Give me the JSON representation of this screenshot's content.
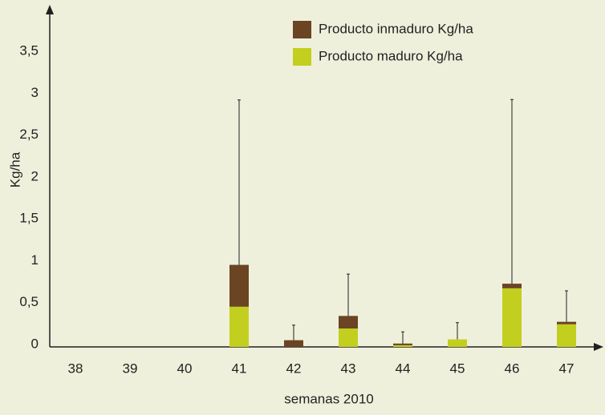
{
  "chart_data": {
    "type": "bar",
    "stacked": true,
    "x_label": "semanas 2010",
    "y_label": "Kg/ha",
    "categories": [
      "38",
      "39",
      "40",
      "41",
      "42",
      "43",
      "44",
      "45",
      "46",
      "47"
    ],
    "series": [
      {
        "name": "Producto maduro Kg/ha",
        "color": "#c3cf1e",
        "values": [
          0,
          0,
          0,
          0.48,
          0,
          0.22,
          0.02,
          0.09,
          0.7,
          0.27
        ]
      },
      {
        "name": "Producto inmaduro Kg/ha",
        "color": "#6b4423",
        "values": [
          0,
          0,
          0,
          0.5,
          0.08,
          0.15,
          0.02,
          0,
          0.055,
          0.03
        ]
      }
    ],
    "errors": [
      null,
      null,
      null,
      1.97,
      0.18,
      0.5,
      0.14,
      0.2,
      2.2,
      0.37
    ],
    "ylim": [
      0,
      4
    ],
    "yticks": [
      0,
      {
        "value": 0.5,
        "label": "0,5"
      },
      1,
      {
        "value": 1.5,
        "label": "1,5"
      },
      2,
      {
        "value": 2.5,
        "label": "2,5"
      },
      3,
      {
        "value": 3.5,
        "label": "3,5"
      }
    ],
    "legend": "top-right"
  }
}
